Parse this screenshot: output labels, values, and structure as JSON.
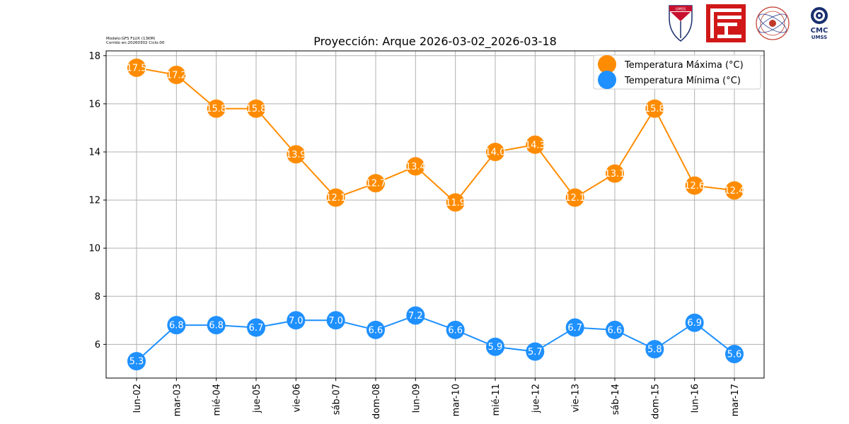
{
  "header": {
    "model_line": "Modelo:GFS FLUX (13KM)",
    "run_line": "Corrido en:20260302 Ciclo:00"
  },
  "logos": [
    {
      "name": "umss-shield-logo",
      "text": "UMSS"
    },
    {
      "name": "red-emblem-logo"
    },
    {
      "name": "seal-logo"
    },
    {
      "name": "cmc-logo",
      "text": "CMC",
      "subtext": "UMSS"
    }
  ],
  "chart_data": {
    "type": "line",
    "title": "Proyección: Arque 2026-03-02_2026-03-18",
    "xlabel": "",
    "ylabel": "",
    "categories": [
      "lun-02",
      "mar-03",
      "mié-04",
      "jue-05",
      "vie-06",
      "sáb-07",
      "dom-08",
      "lun-09",
      "mar-10",
      "mié-11",
      "jue-12",
      "vie-13",
      "sáb-14",
      "dom-15",
      "lun-16",
      "mar-17"
    ],
    "ylim": [
      4.6,
      18.2
    ],
    "yticks": [
      6,
      8,
      10,
      12,
      14,
      16,
      18
    ],
    "grid": true,
    "legend_position": "top-right",
    "series": [
      {
        "name": "Temperatura Máxima  (°C)",
        "color": "#ff8c00",
        "values": [
          17.5,
          17.2,
          15.8,
          15.8,
          13.9,
          12.1,
          12.7,
          13.4,
          11.9,
          14.0,
          14.3,
          12.1,
          13.1,
          15.8,
          12.6,
          12.4
        ],
        "labels": [
          "17.5",
          "17.2",
          "15.8",
          "15.8",
          "13.9",
          "12.1",
          "12.7",
          "13.4",
          "11.9",
          "14.0",
          "14.3",
          "12.1",
          "13.1",
          "15.8",
          "12.6",
          "12.4"
        ]
      },
      {
        "name": "Temperatura Mínima  (°C)",
        "color": "#1e90ff",
        "values": [
          5.3,
          6.8,
          6.8,
          6.7,
          7.0,
          7.0,
          6.6,
          7.2,
          6.6,
          5.9,
          5.7,
          6.7,
          6.6,
          5.8,
          6.9,
          5.6
        ],
        "labels": [
          "5.3",
          "6.8",
          "6.8",
          "6.7",
          "7.0",
          "7.0",
          "6.6",
          "7.2",
          "6.6",
          "5.9",
          "5.7",
          "6.7",
          "6.6",
          "5.8",
          "6.9",
          "5.6"
        ]
      }
    ]
  }
}
